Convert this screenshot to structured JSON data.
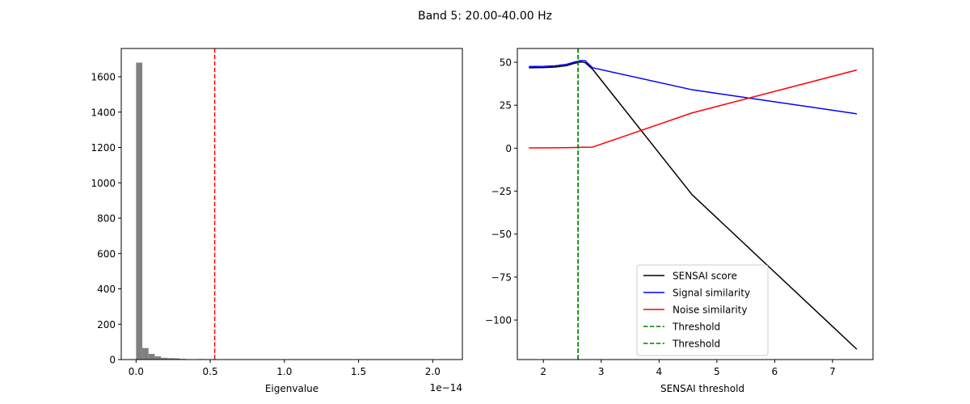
{
  "figure": {
    "title": "Band 5: 20.00-40.00 Hz"
  },
  "chart_data": [
    {
      "type": "bar",
      "subtype": "histogram",
      "title": "",
      "xlabel": "Eigenvalue",
      "ylabel": "",
      "x_offset_label": "1e−14",
      "x_scale": 1e-14,
      "xlim": [
        -0.1,
        2.2
      ],
      "ylim": [
        0,
        1760
      ],
      "xticks": [
        0.0,
        0.5,
        1.0,
        1.5,
        2.0
      ],
      "xtick_labels": [
        "0.0",
        "0.5",
        "1.0",
        "1.5",
        "2.0"
      ],
      "yticks": [
        0,
        200,
        400,
        600,
        800,
        1000,
        1200,
        1400,
        1600
      ],
      "bin_width": 0.042,
      "bin_start": 0.0,
      "values": [
        1680,
        65,
        32,
        18,
        10,
        8,
        7,
        4,
        2,
        0,
        3,
        2,
        1
      ],
      "bar_color": "#808080",
      "vline": {
        "x": 0.53,
        "color": "#ff0000",
        "style": "dashed"
      },
      "grid": false
    },
    {
      "type": "line",
      "title": "",
      "xlabel": "SENSAI threshold",
      "ylabel": "",
      "xlim": [
        1.55,
        7.7
      ],
      "ylim": [
        -123,
        58
      ],
      "xticks": [
        2,
        3,
        4,
        5,
        6,
        7
      ],
      "yticks": [
        50,
        25,
        0,
        -25,
        -50,
        -75,
        -100
      ],
      "ytick_labels": [
        "50",
        "25",
        "0",
        "−25",
        "−50",
        "−75",
        "−100"
      ],
      "x": [
        1.75,
        2.0,
        2.2,
        2.4,
        2.55,
        2.65,
        2.72,
        2.85,
        4.57,
        7.42
      ],
      "series": [
        {
          "name": "SENSAI score",
          "color": "#000000",
          "values": [
            46.8,
            46.9,
            47.2,
            48.0,
            49.5,
            50.2,
            49.8,
            46.0,
            -27.0,
            -117.0
          ]
        },
        {
          "name": "Signal similarity",
          "color": "#0000ff",
          "values": [
            47.5,
            47.6,
            47.9,
            48.8,
            50.2,
            51.0,
            50.9,
            46.8,
            34.0,
            20.0
          ]
        },
        {
          "name": "Noise similarity",
          "color": "#ff0000",
          "values": [
            0.2,
            0.2,
            0.25,
            0.3,
            0.4,
            0.5,
            0.5,
            0.6,
            20.5,
            45.5
          ]
        }
      ],
      "vlines": [
        {
          "name": "Threshold",
          "x": 2.6,
          "color": "#008000",
          "style": "dashed"
        },
        {
          "name": "Threshold",
          "x": 2.6,
          "color": "#008000",
          "style": "dashed"
        }
      ],
      "legend": {
        "position": "lower center",
        "entries": [
          "SENSAI score",
          "Signal similarity",
          "Noise similarity",
          "Threshold",
          "Threshold"
        ]
      },
      "grid": false
    }
  ]
}
